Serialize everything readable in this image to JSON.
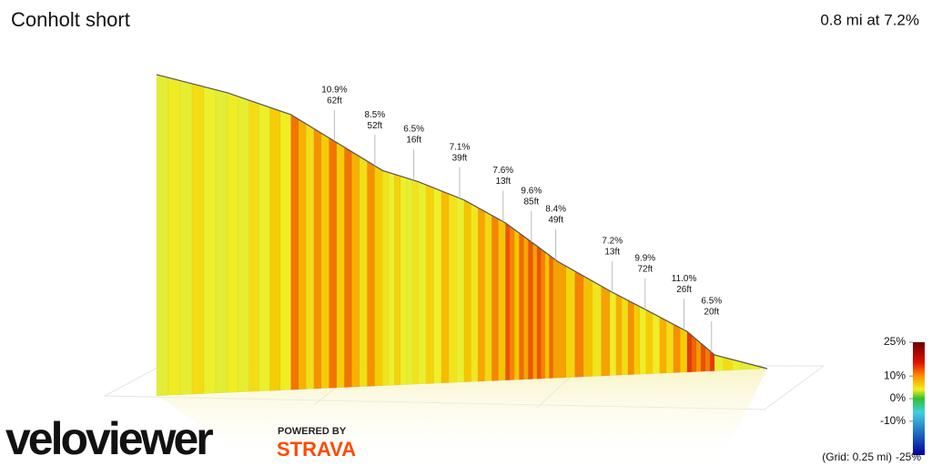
{
  "chart_data": {
    "type": "profile",
    "title": "Conholt short",
    "subtitle": "0.8 mi at 7.2%",
    "x": [
      0,
      0.093,
      0.176,
      0.236,
      0.296,
      0.343,
      0.403,
      0.457,
      0.493,
      0.525,
      0.594,
      0.641,
      0.695,
      0.731,
      0.8
    ],
    "values": [
      300,
      280,
      257,
      229,
      201,
      189,
      170,
      147,
      127,
      109,
      79,
      60,
      38,
      15,
      0
    ],
    "xlim": [
      0,
      0.8
    ],
    "annotations": [
      {
        "x": 0.233,
        "grade": "10.9%",
        "rise": "62ft"
      },
      {
        "x": 0.286,
        "grade": "8.5%",
        "rise": "52ft"
      },
      {
        "x": 0.337,
        "grade": "6.5%",
        "rise": "16ft"
      },
      {
        "x": 0.397,
        "grade": "7.1%",
        "rise": "39ft"
      },
      {
        "x": 0.454,
        "grade": "7.6%",
        "rise": "13ft"
      },
      {
        "x": 0.491,
        "grade": "9.6%",
        "rise": "85ft"
      },
      {
        "x": 0.523,
        "grade": "8.4%",
        "rise": "49ft"
      },
      {
        "x": 0.597,
        "grade": "7.2%",
        "rise": "13ft"
      },
      {
        "x": 0.64,
        "grade": "9.9%",
        "rise": "72ft"
      },
      {
        "x": 0.691,
        "grade": "11.0%",
        "rise": "26ft"
      },
      {
        "x": 0.727,
        "grade": "6.5%",
        "rise": "20ft"
      }
    ],
    "legend_lim": [
      -25,
      25
    ],
    "legend_ticks": [
      {
        "value": 25,
        "label": "25%"
      },
      {
        "value": 10,
        "label": "10%"
      },
      {
        "value": 0,
        "label": "0%"
      },
      {
        "value": -10,
        "label": "-10%"
      },
      {
        "value": -25,
        "label": "-25%"
      }
    ],
    "grid_note": "(Grid: 0.25 mi)",
    "brand": "veloviewer",
    "powered_by": "POWERED BY",
    "partner": "STRAVA"
  }
}
